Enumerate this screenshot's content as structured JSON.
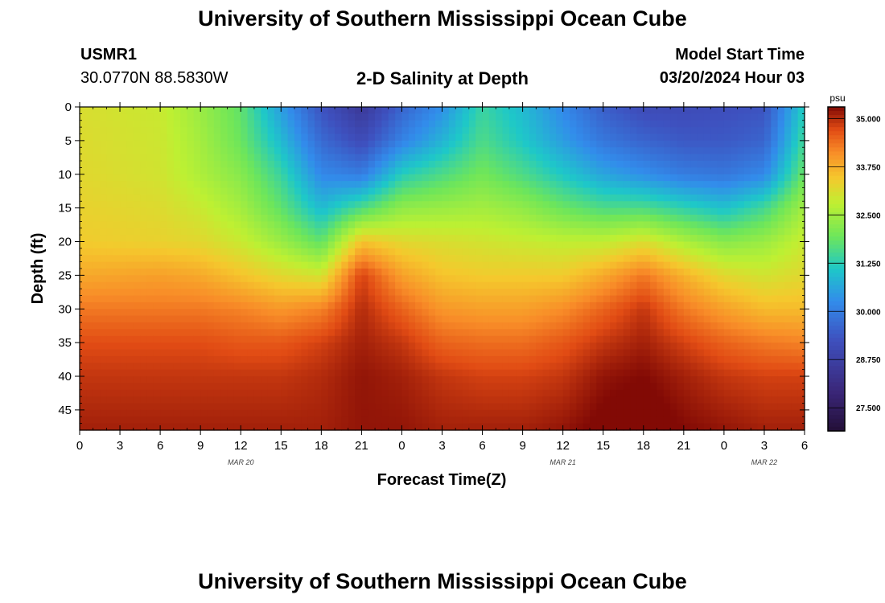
{
  "header": {
    "title": "University of Southern Mississippi Ocean Cube",
    "station_id": "USMR1",
    "coords": "30.0770N  88.5830W",
    "plot_title": "2-D Salinity at Depth",
    "model_start_label": "Model Start Time",
    "model_start_value": "03/20/2024 Hour 03"
  },
  "footer": {
    "title": "University of Southern Mississippi Ocean Cube"
  },
  "chart_data": {
    "type": "heatmap",
    "title": "2-D Salinity at Depth",
    "xlabel": "Forecast Time(Z)",
    "ylabel": "Depth (ft)",
    "x_tick_labels": [
      "0",
      "3",
      "6",
      "9",
      "12",
      "15",
      "18",
      "21",
      "0",
      "3",
      "6",
      "9",
      "12",
      "15",
      "18",
      "21",
      "0",
      "3",
      "6"
    ],
    "date_labels": [
      {
        "label": "MAR 20",
        "hour_index": 12
      },
      {
        "label": "MAR 21",
        "hour_index": 36
      },
      {
        "label": "MAR 22",
        "hour_index": 51
      }
    ],
    "hours_range": [
      0,
      54
    ],
    "depth_ticks": [
      0,
      5,
      10,
      15,
      20,
      25,
      30,
      35,
      40,
      45
    ],
    "depth_range": [
      0,
      48
    ],
    "colorbar": {
      "unit": "psu",
      "range": [
        26.9,
        35.3
      ],
      "tick_labels": [
        "35.000",
        "33.750",
        "32.500",
        "31.250",
        "30.000",
        "28.750",
        "27.500"
      ],
      "tick_values": [
        35.0,
        33.75,
        32.5,
        31.25,
        30.0,
        28.75,
        27.5
      ]
    },
    "salinity_profiles": [
      {
        "hour": 0,
        "depth": [
          0,
          10,
          20,
          25,
          30,
          35,
          40,
          48
        ],
        "psu": [
          33.1,
          33.2,
          33.4,
          33.8,
          34.3,
          34.7,
          34.9,
          35.1
        ]
      },
      {
        "hour": 6,
        "depth": [
          0,
          10,
          20,
          25,
          30,
          35,
          40,
          48
        ],
        "psu": [
          32.9,
          33.0,
          33.3,
          33.9,
          34.3,
          34.7,
          34.9,
          35.1
        ]
      },
      {
        "hour": 9,
        "depth": [
          0,
          10,
          15,
          20,
          25,
          30,
          35,
          40,
          48
        ],
        "psu": [
          32.4,
          32.6,
          32.9,
          33.2,
          33.8,
          34.3,
          34.7,
          34.9,
          35.1
        ]
      },
      {
        "hour": 12,
        "depth": [
          0,
          5,
          10,
          15,
          20,
          25,
          30,
          35,
          40,
          48
        ],
        "psu": [
          31.8,
          31.9,
          32.2,
          32.5,
          32.9,
          33.5,
          34.2,
          34.6,
          34.9,
          35.1
        ]
      },
      {
        "hour": 15,
        "depth": [
          0,
          5,
          10,
          15,
          20,
          25,
          30,
          35,
          40,
          48
        ],
        "psu": [
          30.5,
          30.9,
          31.4,
          31.8,
          32.4,
          33.2,
          34.0,
          34.6,
          34.9,
          35.1
        ]
      },
      {
        "hour": 18,
        "depth": [
          0,
          5,
          10,
          15,
          20,
          25,
          30,
          35,
          40,
          48
        ],
        "psu": [
          29.3,
          29.7,
          30.2,
          30.9,
          31.8,
          33.0,
          34.2,
          34.8,
          35.0,
          35.1
        ]
      },
      {
        "hour": 21,
        "depth": [
          0,
          5,
          10,
          15,
          20,
          25,
          30,
          35,
          40,
          48
        ],
        "psu": [
          28.5,
          29.1,
          30.0,
          31.6,
          33.5,
          34.8,
          35.0,
          35.1,
          35.2,
          35.2
        ]
      },
      {
        "hour": 24,
        "depth": [
          0,
          5,
          10,
          15,
          20,
          25,
          30,
          35,
          40,
          48
        ],
        "psu": [
          29.6,
          30.1,
          31.2,
          32.3,
          33.2,
          33.9,
          34.5,
          34.9,
          35.1,
          35.2
        ]
      },
      {
        "hour": 27,
        "depth": [
          0,
          5,
          10,
          15,
          20,
          25,
          30,
          35,
          40,
          48
        ],
        "psu": [
          30.3,
          30.8,
          31.6,
          32.4,
          33.1,
          33.5,
          34.0,
          34.5,
          34.9,
          35.1
        ]
      },
      {
        "hour": 30,
        "depth": [
          0,
          5,
          10,
          15,
          20,
          25,
          30,
          35,
          40,
          48
        ],
        "psu": [
          31.4,
          31.6,
          32.0,
          32.5,
          33.0,
          33.4,
          33.9,
          34.4,
          34.8,
          35.1
        ]
      },
      {
        "hour": 33,
        "depth": [
          0,
          5,
          10,
          15,
          20,
          25,
          30,
          35,
          40,
          48
        ],
        "psu": [
          30.9,
          31.1,
          31.6,
          32.3,
          32.9,
          33.4,
          33.9,
          34.4,
          34.8,
          35.1
        ]
      },
      {
        "hour": 36,
        "depth": [
          0,
          5,
          10,
          15,
          20,
          25,
          30,
          35,
          40,
          48
        ],
        "psu": [
          30.2,
          30.5,
          31.1,
          31.9,
          32.8,
          33.4,
          34.1,
          34.6,
          34.9,
          35.2
        ]
      },
      {
        "hour": 39,
        "depth": [
          0,
          5,
          10,
          15,
          20,
          25,
          30,
          35,
          40,
          48
        ],
        "psu": [
          29.5,
          29.9,
          30.6,
          31.6,
          32.8,
          33.8,
          34.5,
          34.9,
          35.2,
          35.4
        ]
      },
      {
        "hour": 42,
        "depth": [
          0,
          5,
          10,
          15,
          20,
          25,
          30,
          35,
          40,
          48
        ],
        "psu": [
          29.1,
          29.6,
          30.3,
          31.6,
          33.1,
          34.3,
          34.9,
          35.1,
          35.3,
          35.5
        ]
      },
      {
        "hour": 45,
        "depth": [
          0,
          5,
          10,
          15,
          20,
          25,
          30,
          35,
          40,
          48
        ],
        "psu": [
          29.1,
          29.4,
          30.0,
          31.3,
          32.6,
          33.7,
          34.3,
          34.8,
          35.1,
          35.3
        ]
      },
      {
        "hour": 48,
        "depth": [
          0,
          5,
          10,
          15,
          20,
          25,
          30,
          35,
          40,
          48
        ],
        "psu": [
          29.2,
          29.4,
          29.9,
          31.0,
          32.2,
          33.2,
          33.9,
          34.5,
          34.9,
          35.2
        ]
      },
      {
        "hour": 51,
        "depth": [
          0,
          5,
          10,
          15,
          20,
          25,
          30,
          35,
          40,
          48
        ],
        "psu": [
          29.3,
          29.6,
          30.2,
          31.5,
          32.4,
          33.0,
          33.6,
          34.3,
          34.8,
          35.1
        ]
      },
      {
        "hour": 54,
        "depth": [
          0,
          5,
          10,
          15,
          20,
          25,
          30,
          35,
          40,
          48
        ],
        "psu": [
          31.2,
          31.5,
          31.9,
          32.5,
          32.9,
          33.2,
          33.6,
          34.2,
          34.8,
          35.1
        ]
      }
    ],
    "marker_notes": []
  }
}
